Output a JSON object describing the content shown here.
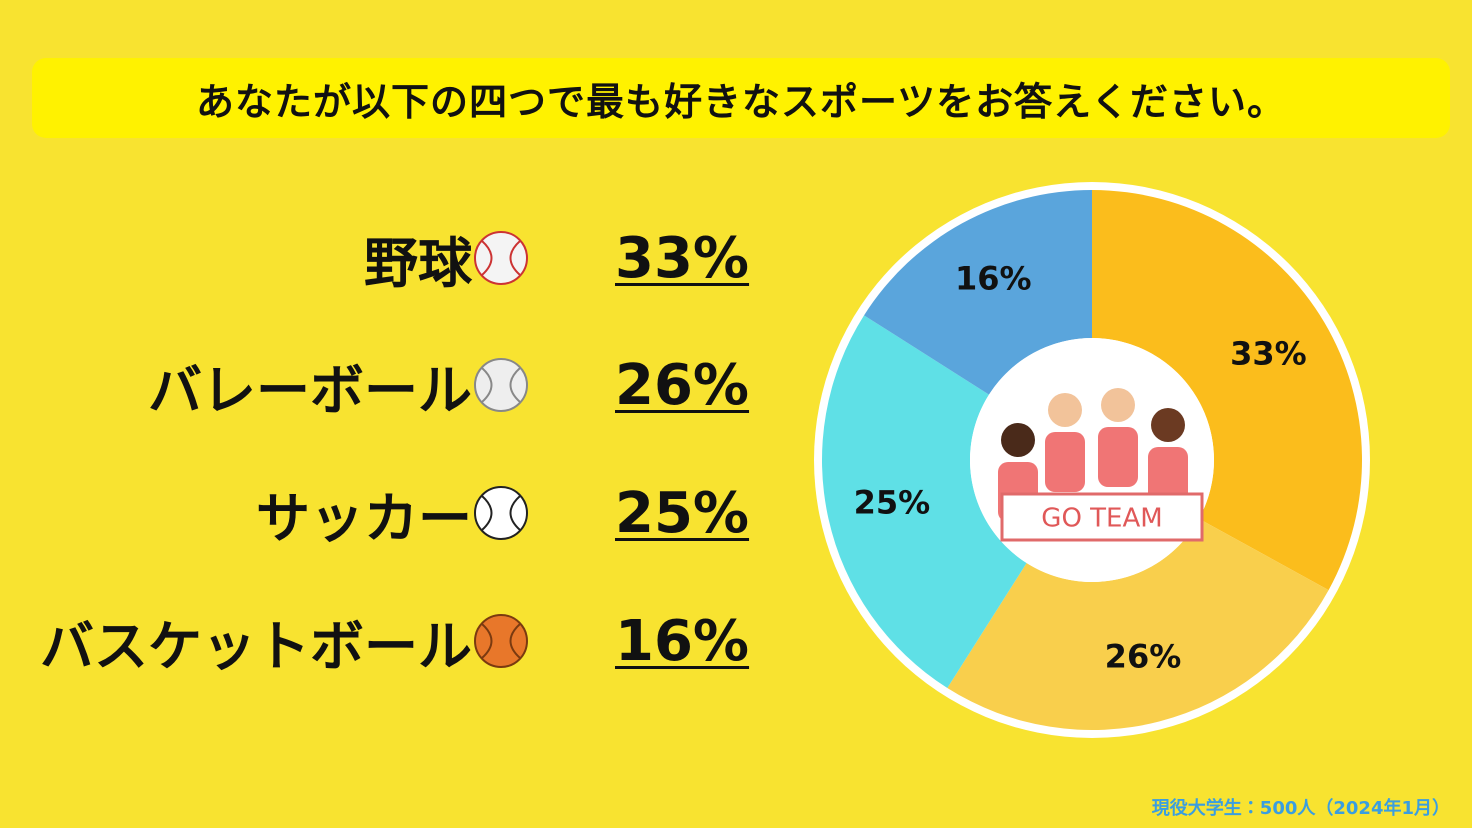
{
  "chart_data": {
    "type": "pie",
    "title": "あなたが以下の四つで最も好きなスポーツをお答えください。",
    "categories": [
      "野球",
      "バレーボール",
      "サッカー",
      "バスケットボール"
    ],
    "values": [
      33,
      26,
      25,
      16
    ],
    "value_labels": [
      "33%",
      "26%",
      "25%",
      "16%"
    ],
    "colors": [
      "#fbbd1c",
      "#f9cf4c",
      "#5fe0e6",
      "#5aa5dc"
    ],
    "annotation": "GO TEAM",
    "source": "現役大学生：500人（2024年1月）"
  }
}
